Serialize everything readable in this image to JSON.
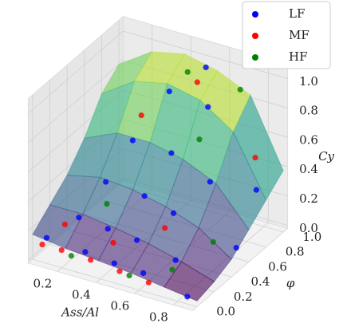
{
  "chart_data": {
    "type": "scatter3d",
    "x_label": "Ass/Al",
    "y_label": "φ",
    "z_label": "Cy",
    "xlim": [
      0.05,
      0.9
    ],
    "ylim": [
      -0.05,
      1.05
    ],
    "zlim": [
      -0.02,
      1.1
    ],
    "xticks": [
      0.2,
      0.4,
      0.6,
      0.8
    ],
    "yticks": [
      {
        "value": 0,
        "label": "0.0"
      },
      0.2,
      0.4,
      0.6,
      0.8,
      {
        "value": 1,
        "label": "1.0"
      }
    ],
    "zticks": [
      {
        "value": 0,
        "label": "0.0"
      },
      0.2,
      0.4,
      0.6,
      0.8,
      {
        "value": 1,
        "label": "1.0"
      }
    ],
    "grid": true,
    "legend": "upper right",
    "surface": {
      "x": [
        0.05,
        0.22,
        0.39,
        0.56,
        0.73,
        0.9
      ],
      "y": [
        0,
        0.2,
        0.4,
        0.6,
        0.8,
        1.0
      ],
      "z": [
        [
          0.15,
          0.12,
          0.1,
          0.08,
          0.05,
          0.02
        ],
        [
          0.25,
          0.25,
          0.22,
          0.18,
          0.12,
          0.05
        ],
        [
          0.35,
          0.4,
          0.38,
          0.33,
          0.25,
          0.1
        ],
        [
          0.5,
          0.6,
          0.6,
          0.55,
          0.45,
          0.2
        ],
        [
          0.7,
          0.85,
          0.9,
          0.85,
          0.7,
          0.3
        ],
        [
          0.8,
          0.95,
          1.0,
          0.95,
          0.85,
          0.4
        ]
      ]
    },
    "series": [
      {
        "name": "LF",
        "color": "#0000ff",
        "x": [
          0.1,
          0.3,
          0.45,
          0.6,
          0.85,
          0.2,
          0.35,
          0.5,
          0.7,
          0.25,
          0.45,
          0.6,
          0.3,
          0.5,
          0.7,
          0.4,
          0.6,
          0.85,
          0.5,
          0.88
        ],
        "y": [
          0.05,
          0.05,
          0.05,
          0.05,
          0.0,
          0.2,
          0.2,
          0.2,
          0.2,
          0.4,
          0.4,
          0.4,
          0.6,
          0.6,
          0.6,
          0.8,
          0.8,
          0.8,
          1.0,
          0.5
        ],
        "values": [
          0.12,
          0.1,
          0.08,
          0.07,
          0.03,
          0.22,
          0.2,
          0.18,
          0.12,
          0.38,
          0.36,
          0.3,
          0.58,
          0.57,
          0.45,
          0.85,
          0.82,
          0.35,
          0.95,
          0.12
        ]
      },
      {
        "name": "MF",
        "color": "#ff0000",
        "x": [
          0.1,
          0.2,
          0.35,
          0.5,
          0.65,
          0.15,
          0.4,
          0.3,
          0.5,
          0.8,
          0.6
        ],
        "y": [
          0.0,
          0.0,
          0.0,
          0.0,
          0.0,
          0.15,
          0.15,
          0.7,
          0.9,
          0.9,
          0.3
        ],
        "values": [
          0.1,
          0.1,
          0.09,
          0.07,
          0.05,
          0.18,
          0.15,
          0.7,
          0.9,
          0.5,
          0.25
        ]
      },
      {
        "name": "HF",
        "color": "#008000",
        "x": [
          0.25,
          0.55,
          0.75,
          0.3,
          0.45,
          0.7,
          0.6,
          0.85
        ],
        "y": [
          0.0,
          0.0,
          0.05,
          0.3,
          0.9,
          0.95,
          0.7,
          0.3
        ],
        "values": [
          0.08,
          0.06,
          0.15,
          0.3,
          0.95,
          0.9,
          0.65,
          0.25
        ]
      }
    ]
  }
}
